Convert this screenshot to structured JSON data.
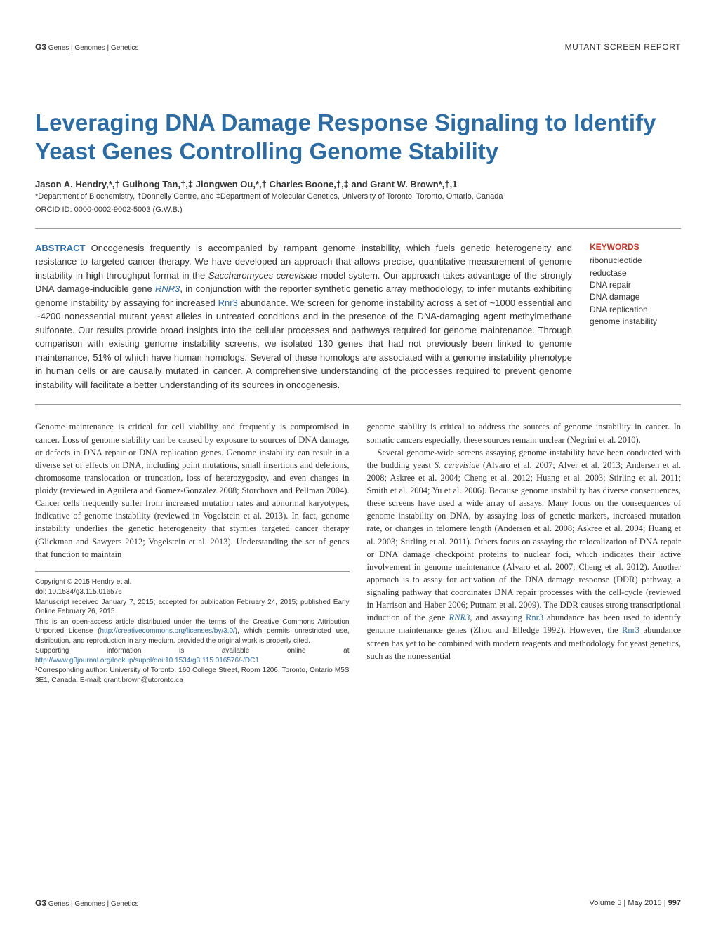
{
  "header": {
    "journal_brand_prefix": "G3",
    "journal_brand_suffix": "Genes | Genomes | Genetics",
    "section_label": "MUTANT SCREEN REPORT"
  },
  "title": "Leveraging DNA Damage Response Signaling to Identify Yeast Genes Controlling Genome Stability",
  "authors": "Jason A. Hendry,*,† Guihong Tan,†,‡ Jiongwen Ou,*,† Charles Boone,†,‡ and Grant W. Brown*,†,1",
  "affiliations": "*Department of Biochemistry, †Donnelly Centre, and ‡Department of Molecular Genetics, University of Toronto, Toronto, Ontario, Canada",
  "orcid": "ORCID ID: 0000-0002-9002-5003 (G.W.B.)",
  "abstract": {
    "label": "ABSTRACT",
    "text_part1": "Oncogenesis frequently is accompanied by rampant genome instability, which fuels genetic heterogeneity and resistance to targeted cancer therapy. We have developed an approach that allows precise, quantitative measurement of genome instability in high-throughput format in the ",
    "italic1": "Saccharomyces cerevisiae",
    "text_part2": " model system. Our approach takes advantage of the strongly DNA damage-inducible gene ",
    "gene1": "RNR3",
    "text_part3": ", in conjunction with the reporter synthetic genetic array methodology, to infer mutants exhibiting genome instability by assaying for increased ",
    "gene2": "Rnr3",
    "text_part4": " abundance. We screen for genome instability across a set of ~1000 essential and ~4200 nonessential mutant yeast alleles in untreated conditions and in the presence of the DNA-damaging agent methylmethane sulfonate. Our results provide broad insights into the cellular processes and pathways required for genome maintenance. Through comparison with existing genome instability screens, we isolated 130 genes that had not previously been linked to genome maintenance, 51% of which have human homologs. Several of these homologs are associated with a genome instability phenotype in human cells or are causally mutated in cancer. A comprehensive understanding of the processes required to prevent genome instability will facilitate a better understanding of its sources in oncogenesis."
  },
  "keywords": {
    "label": "KEYWORDS",
    "items": [
      "ribonucleotide reductase",
      "DNA repair",
      "DNA damage",
      "DNA replication",
      "genome instability"
    ]
  },
  "body": {
    "col1_p1": "Genome maintenance is critical for cell viability and frequently is compromised in cancer. Loss of genome stability can be caused by exposure to sources of DNA damage, or defects in DNA repair or DNA replication genes. Genome instability can result in a diverse set of effects on DNA, including point mutations, small insertions and deletions, chromosome translocation or truncation, loss of heterozygosity, and even changes in ploidy (reviewed in Aguilera and Gomez-Gonzalez 2008; Storchova and Pellman 2004). Cancer cells frequently suffer from increased mutation rates and abnormal karyotypes, indicative of genome instability (reviewed in Vogelstein et al. 2013). In fact, genome instability underlies the genetic heterogeneity that stymies targeted cancer therapy (Glickman and Sawyers 2012; Vogelstein et al. 2013). Understanding the set of genes that function to maintain",
    "col2_p1": "genome stability is critical to address the sources of genome instability in cancer. In somatic cancers especially, these sources remain unclear (Negrini et al. 2010).",
    "col2_p2_a": "Several genome-wide screens assaying genome instability have been conducted with the budding yeast ",
    "col2_p2_i1": "S. cerevisiae",
    "col2_p2_b": " (Alvaro et al. 2007; Alver et al. 2013; Andersen et al. 2008; Askree et al. 2004; Cheng et al. 2012; Huang et al. 2003; Stirling et al. 2011; Smith et al. 2004; Yu et al. 2006). Because genome instability has diverse consequences, these screens have used a wide array of assays. Many focus on the consequences of genome instability on DNA, by assaying loss of genetic markers, increased mutation rate, or changes in telomere length (Andersen et al. 2008; Askree et al. 2004; Huang et al. 2003; Stirling et al. 2011). Others focus on assaying the relocalization of DNA repair or DNA damage checkpoint proteins to nuclear foci, which indicates their active involvement in genome maintenance (Alvaro et al. 2007; Cheng et al. 2012). Another approach is to assay for activation of the DNA damage response (DDR) pathway, a signaling pathway that coordinates DNA repair processes with the cell-cycle (reviewed in Harrison and Haber 2006; Putnam et al. 2009). The DDR causes strong transcriptional induction of the gene ",
    "col2_gene1": "RNR3",
    "col2_p2_c": ", and assaying ",
    "col2_gene2": "Rnr3",
    "col2_p2_d": " abundance has been used to identify genome maintenance genes (Zhou and Elledge 1992). However, the ",
    "col2_gene3": "Rnr3",
    "col2_p2_e": " abundance screen has yet to be combined with modern reagents and methodology for yeast genetics, such as the nonessential"
  },
  "footnotes": {
    "copyright": "Copyright © 2015 Hendry et al.",
    "doi": "doi: 10.1534/g3.115.016576",
    "received": "Manuscript received January 7, 2015; accepted for publication February 24, 2015; published Early Online February 26, 2015.",
    "license_a": "This is an open-access article distributed under the terms of the Creative Commons Attribution Unported License (",
    "license_url": "http://creativecommons.org/licenses/by/3.0/",
    "license_b": "), which permits unrestricted use, distribution, and reproduction in any medium, provided the original work is properly cited.",
    "supporting_a": "Supporting information is available online at ",
    "supporting_url": "http://www.g3journal.org/lookup/suppl/doi:10.1534/g3.115.016576/-/DC1",
    "corresponding": "¹Corresponding author: University of Toronto, 160 College Street, Room 1206, Toronto, Ontario M5S 3E1, Canada. E-mail: grant.brown@utoronto.ca"
  },
  "footer": {
    "journal_brand_prefix": "G3",
    "journal_brand_suffix": "Genes | Genomes | Genetics",
    "issue": "Volume 5 | May 2015 |",
    "page": "997"
  },
  "styling": {
    "title_color": "#2d6ca2",
    "keywords_label_color": "#c0392b",
    "body_font_size": 12.5,
    "title_font_size": 33,
    "link_color": "#2d6ca2",
    "background_color": "#ffffff",
    "text_color": "#333333",
    "divider_color": "#999999"
  }
}
